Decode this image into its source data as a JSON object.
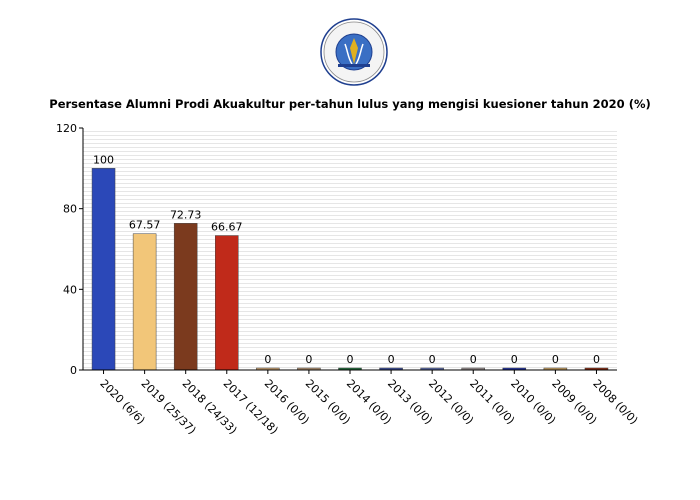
{
  "logo": {
    "ring_text": "KEMENTERIAN PENDIDIKAN DAN KEBUDAYAAN UNIVERSITAS BANGKA BELITUNG",
    "colors": {
      "ring": "#1f3f8f",
      "inner": "#3a6fc4",
      "gold": "#e0b020"
    }
  },
  "chart_data": {
    "type": "bar",
    "title": "Persentase Alumni Prodi Akuakultur per-tahun lulus yang mengisi kuesioner tahun 2020 (%)",
    "xlabel": "",
    "ylabel": "",
    "categories": [
      "2020 (6/6)",
      "2019 (25/37)",
      "2018 (24/33)",
      "2017 (12/18)",
      "2016 (0/0)",
      "2015 (0/0)",
      "2014 (0/0)",
      "2013 (0/0)",
      "2012 (0/0)",
      "2011 (0/0)",
      "2010 (0/0)",
      "2009 (0/0)",
      "2008 (0/0)"
    ],
    "values": [
      100,
      67.57,
      72.73,
      66.67,
      0,
      0,
      0,
      0,
      0,
      0,
      0,
      0,
      0
    ],
    "value_labels": [
      "100",
      "67.57",
      "72.73",
      "66.67",
      "0",
      "0",
      "0",
      "0",
      "0",
      "0",
      "0",
      "0",
      "0"
    ],
    "colors": [
      "#2b48b8",
      "#f2c679",
      "#7b3a1e",
      "#c02a1a",
      "#c8a070",
      "#b09070",
      "#1f6b3a",
      "#3a4c9a",
      "#5a6aa8",
      "#9a9090",
      "#2030a0",
      "#c8a060",
      "#8a2a10"
    ],
    "ylim": [
      0,
      120
    ],
    "yticks": [
      "0",
      "40",
      "80",
      "120"
    ],
    "grid": true,
    "legend": "none"
  }
}
